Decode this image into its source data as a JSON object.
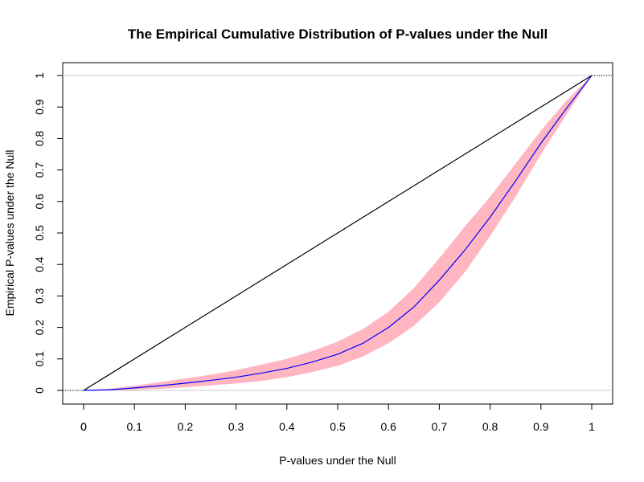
{
  "chart_data": {
    "type": "line",
    "title": "The Empirical Cumulative Distribution of P-values under the Null",
    "xlabel": "P-values under the Null",
    "ylabel": "Empirical P-values under the Null",
    "xlim": [
      0,
      1
    ],
    "ylim": [
      0,
      1
    ],
    "x_ticks": [
      "0",
      "0",
      "0.1",
      "0.2",
      "0.3",
      "0.4",
      "0.5",
      "0.6",
      "0.7",
      "0.8",
      "0.9",
      "1"
    ],
    "y_ticks": [
      "0",
      "0.1",
      "0.2",
      "0.3",
      "0.4",
      "0.5",
      "0.6",
      "0.7",
      "0.8",
      "0.9",
      "1"
    ],
    "grid": false,
    "reference_lines": [
      0,
      1
    ],
    "series": [
      {
        "kind": "diagonal",
        "color": "#000000",
        "x": [
          0,
          1
        ],
        "y": [
          0,
          1
        ]
      },
      {
        "kind": "empirical-cdf",
        "color": "#0000ff",
        "x": [
          0,
          0.05,
          0.1,
          0.15,
          0.2,
          0.25,
          0.3,
          0.35,
          0.4,
          0.45,
          0.5,
          0.55,
          0.6,
          0.65,
          0.7,
          0.75,
          0.8,
          0.85,
          0.9,
          0.95,
          1
        ],
        "y": [
          0,
          0.002,
          0.008,
          0.015,
          0.023,
          0.032,
          0.042,
          0.055,
          0.07,
          0.09,
          0.115,
          0.15,
          0.2,
          0.265,
          0.35,
          0.445,
          0.55,
          0.665,
          0.785,
          0.895,
          1
        ]
      },
      {
        "kind": "confidence-band",
        "color": "#ffb6c1",
        "x": [
          0,
          0.05,
          0.1,
          0.15,
          0.2,
          0.25,
          0.3,
          0.35,
          0.4,
          0.45,
          0.5,
          0.55,
          0.6,
          0.65,
          0.7,
          0.75,
          0.8,
          0.85,
          0.9,
          0.95,
          1
        ],
        "lower": [
          0,
          0,
          0.002,
          0.005,
          0.01,
          0.016,
          0.022,
          0.03,
          0.042,
          0.058,
          0.078,
          0.108,
          0.15,
          0.205,
          0.28,
          0.375,
          0.49,
          0.615,
          0.75,
          0.875,
          1
        ],
        "upper": [
          0,
          0.005,
          0.015,
          0.026,
          0.038,
          0.05,
          0.064,
          0.082,
          0.1,
          0.125,
          0.155,
          0.195,
          0.25,
          0.325,
          0.42,
          0.52,
          0.615,
          0.72,
          0.825,
          0.92,
          1
        ]
      }
    ]
  }
}
